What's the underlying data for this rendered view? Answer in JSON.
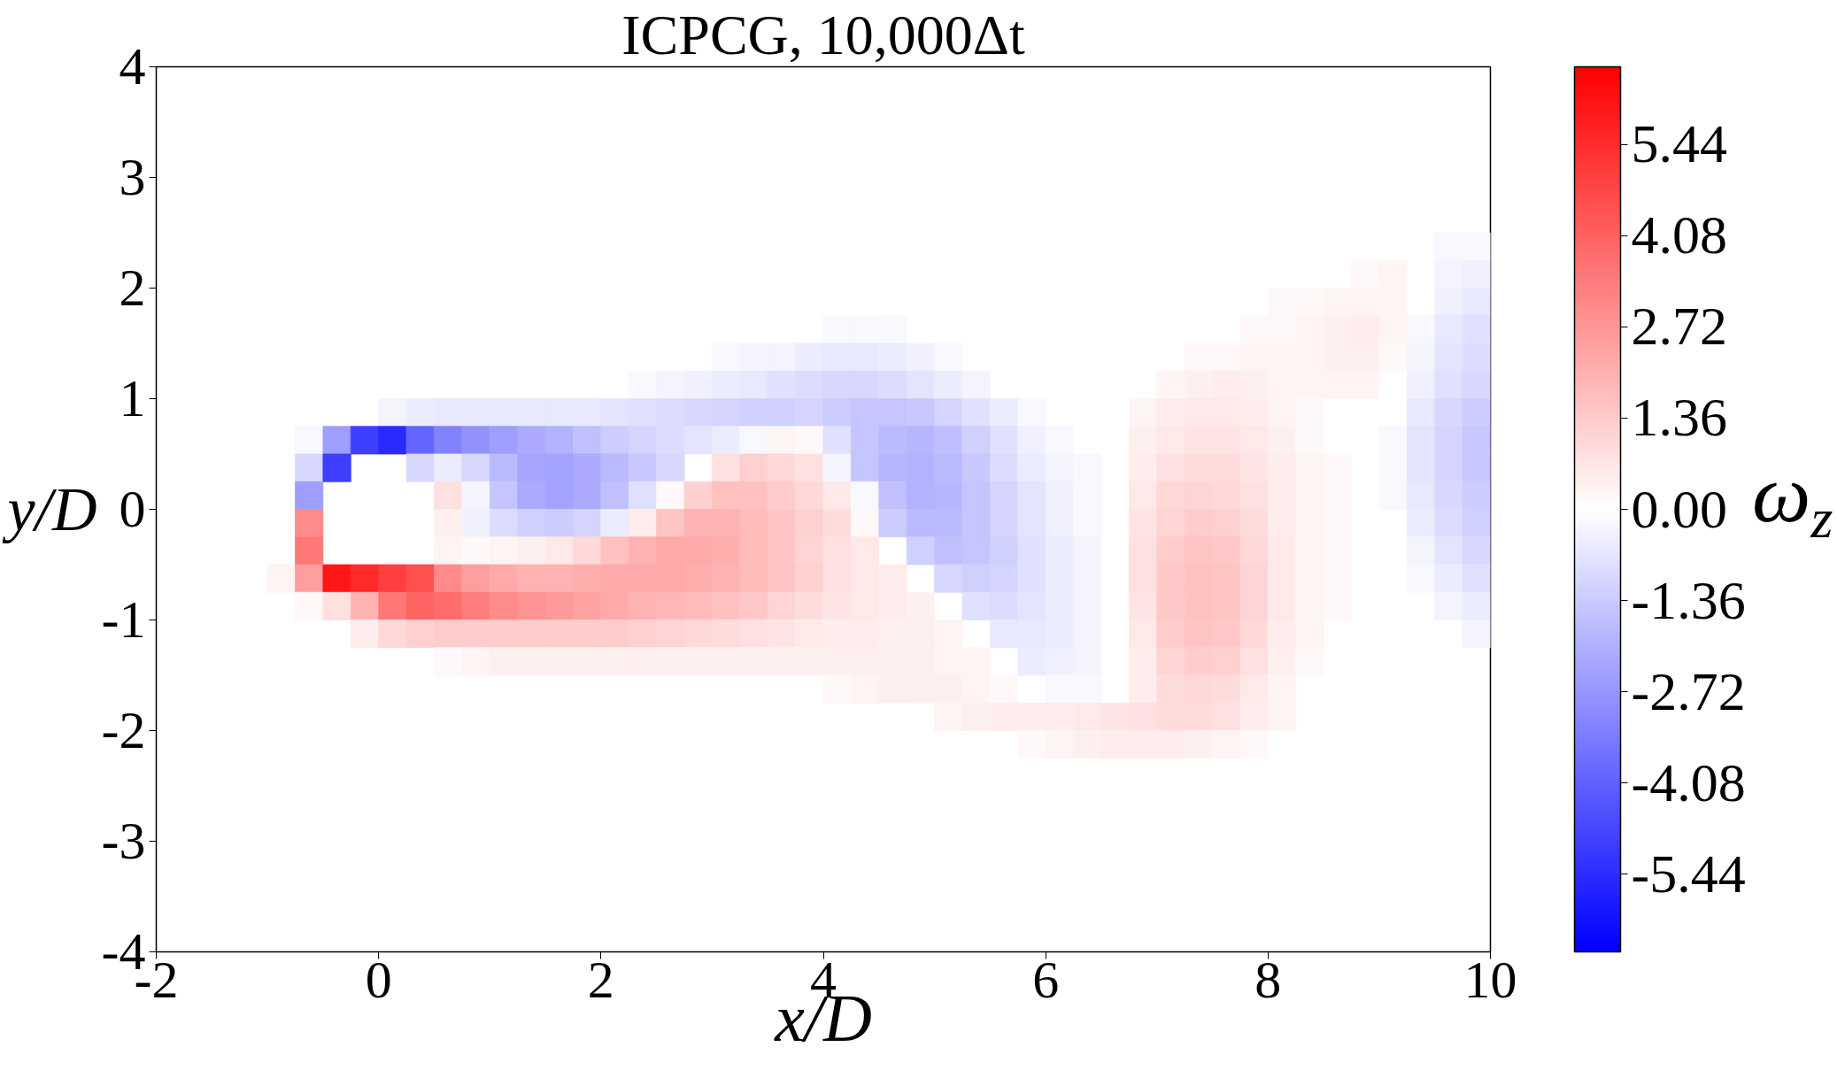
{
  "chart_data": {
    "type": "scatter",
    "marker": "square",
    "title": "ICPCG, 10,000Δt",
    "xlabel": "x/D",
    "ylabel": "y/D",
    "clabel": "ω$_{z}$",
    "xlim": [
      -2,
      10
    ],
    "ylim": [
      -4,
      4
    ],
    "xticks": [
      -2,
      0,
      2,
      4,
      6,
      8,
      10
    ],
    "yticks": [
      -4,
      -3,
      -2,
      -1,
      0,
      1,
      2,
      3,
      4
    ],
    "clim": [
      -6.6,
      6.6
    ],
    "cticks": [
      -5.44,
      -4.08,
      -2.72,
      -1.36,
      {
        "value": 0,
        "label": "0.00"
      },
      1.36,
      2.72,
      4.08,
      5.44
    ],
    "x": [
      9.625,
      9.875,
      8.875,
      9.125,
      9.625,
      9.875,
      8.125,
      8.375,
      8.625,
      8.875,
      9.125,
      9.625,
      9.875,
      4.125,
      4.375,
      4.625,
      7.875,
      8.125,
      8.375,
      8.625,
      8.875,
      9.125,
      9.375,
      9.625,
      9.875,
      3.125,
      3.375,
      3.625,
      3.875,
      4.125,
      4.375,
      4.625,
      4.875,
      5.125,
      7.375,
      7.625,
      7.875,
      8.125,
      8.375,
      8.625,
      8.875,
      9.125,
      9.375,
      9.625,
      9.875,
      2.375,
      2.625,
      2.875,
      3.125,
      3.375,
      3.625,
      3.875,
      4.125,
      4.375,
      4.625,
      4.875,
      5.125,
      5.375,
      7.125,
      7.375,
      7.625,
      7.875,
      8.125,
      8.375,
      8.625,
      8.875,
      9.375,
      9.625,
      9.875,
      0.125,
      0.375,
      0.625,
      0.875,
      1.125,
      1.375,
      1.625,
      1.875,
      2.125,
      2.375,
      2.625,
      2.875,
      3.125,
      3.375,
      3.625,
      3.875,
      4.125,
      4.375,
      4.625,
      4.875,
      5.125,
      5.375,
      5.625,
      5.875,
      6.875,
      7.125,
      7.375,
      7.625,
      7.875,
      8.125,
      8.375,
      9.375,
      9.625,
      9.875,
      -0.625,
      -0.375,
      -0.125,
      0.125,
      0.375,
      0.625,
      0.875,
      1.125,
      1.375,
      1.625,
      1.875,
      2.125,
      2.375,
      2.625,
      2.875,
      3.125,
      3.375,
      3.625,
      3.875,
      4.125,
      4.375,
      4.625,
      4.875,
      5.125,
      5.375,
      5.625,
      5.875,
      6.125,
      6.875,
      7.125,
      7.375,
      7.625,
      7.875,
      8.125,
      8.375,
      9.125,
      9.375,
      9.625,
      9.875,
      -0.625,
      -0.375,
      0.375,
      0.625,
      0.875,
      1.125,
      1.375,
      1.625,
      1.875,
      2.125,
      2.375,
      2.625,
      3.125,
      3.375,
      3.625,
      3.875,
      4.125,
      4.375,
      4.625,
      4.875,
      5.125,
      5.375,
      5.625,
      5.875,
      6.125,
      6.375,
      6.875,
      7.125,
      7.375,
      7.625,
      7.875,
      8.125,
      8.375,
      8.625,
      9.125,
      9.375,
      9.625,
      9.875,
      -0.625,
      0.625,
      0.875,
      1.125,
      1.375,
      1.625,
      1.875,
      2.125,
      2.375,
      2.625,
      2.875,
      3.125,
      3.375,
      3.625,
      3.875,
      4.125,
      4.375,
      4.625,
      4.875,
      5.125,
      5.375,
      5.625,
      5.875,
      6.125,
      6.375,
      6.875,
      7.125,
      7.375,
      7.625,
      7.875,
      8.125,
      8.375,
      8.625,
      9.125,
      9.375,
      9.625,
      9.875,
      -0.625,
      0.625,
      0.875,
      1.125,
      1.375,
      1.625,
      1.875,
      2.125,
      2.375,
      2.625,
      2.875,
      3.125,
      3.375,
      3.625,
      3.875,
      4.125,
      4.375,
      4.625,
      4.875,
      5.125,
      5.375,
      5.625,
      5.875,
      6.125,
      6.375,
      6.875,
      7.125,
      7.375,
      7.625,
      7.875,
      8.125,
      8.375,
      8.625,
      9.375,
      9.625,
      9.875,
      -0.625,
      0.625,
      0.875,
      1.125,
      1.375,
      1.625,
      1.875,
      2.125,
      2.375,
      2.625,
      2.875,
      3.125,
      3.375,
      3.625,
      3.875,
      4.125,
      4.375,
      4.875,
      5.125,
      5.375,
      5.625,
      5.875,
      6.125,
      6.375,
      6.875,
      7.125,
      7.375,
      7.625,
      7.875,
      8.125,
      8.375,
      8.625,
      9.375,
      9.625,
      9.875,
      -0.875,
      -0.625,
      -0.375,
      -0.125,
      0.125,
      0.375,
      0.625,
      0.875,
      1.125,
      1.375,
      1.625,
      1.875,
      2.125,
      2.375,
      2.625,
      2.875,
      3.125,
      3.375,
      3.625,
      3.875,
      4.125,
      4.375,
      4.625,
      5.125,
      5.375,
      5.625,
      5.875,
      6.125,
      6.375,
      6.875,
      7.125,
      7.375,
      7.625,
      7.875,
      8.125,
      8.375,
      8.625,
      9.375,
      9.625,
      9.875,
      -0.625,
      -0.375,
      -0.125,
      0.125,
      0.375,
      0.625,
      0.875,
      1.125,
      1.375,
      1.625,
      1.875,
      2.125,
      2.375,
      2.625,
      2.875,
      3.125,
      3.375,
      3.625,
      3.875,
      4.125,
      4.375,
      4.625,
      4.875,
      5.375,
      5.625,
      5.875,
      6.125,
      6.375,
      6.875,
      7.125,
      7.375,
      7.625,
      7.875,
      8.125,
      8.375,
      8.625,
      9.625,
      9.875,
      -0.125,
      0.125,
      0.375,
      0.625,
      0.875,
      1.125,
      1.375,
      1.625,
      1.875,
      2.125,
      2.375,
      2.625,
      2.875,
      3.125,
      3.375,
      3.625,
      3.875,
      4.125,
      4.375,
      4.625,
      4.875,
      5.125,
      5.625,
      5.875,
      6.125,
      6.375,
      6.875,
      7.125,
      7.375,
      7.625,
      7.875,
      8.125,
      8.375,
      9.875,
      0.625,
      0.875,
      1.125,
      1.375,
      1.625,
      1.875,
      2.125,
      2.375,
      2.625,
      2.875,
      3.125,
      3.375,
      3.625,
      3.875,
      4.125,
      4.375,
      4.625,
      4.875,
      5.125,
      5.375,
      5.875,
      6.125,
      6.375,
      6.875,
      7.125,
      7.375,
      7.625,
      7.875,
      8.125,
      8.375,
      4.125,
      4.375,
      4.625,
      4.875,
      5.125,
      5.375,
      5.625,
      6.125,
      6.375,
      6.875,
      7.125,
      7.375,
      7.625,
      7.875,
      8.125,
      5.125,
      5.375,
      5.625,
      5.875,
      6.125,
      6.375,
      6.625,
      6.875,
      7.125,
      7.375,
      7.625,
      7.875,
      8.125,
      5.875,
      6.125,
      6.375,
      6.625,
      6.875,
      7.125,
      7.375,
      7.625,
      7.875
    ],
    "values": [
      2.375,
      2.375,
      2.125,
      2.125,
      2.125,
      2.125,
      1.875,
      1.875,
      1.875,
      1.875,
      1.875,
      1.875,
      1.875,
      1.625,
      1.625,
      1.625,
      1.625,
      1.625,
      1.625,
      1.625,
      1.625,
      1.625,
      1.625,
      1.625,
      1.625,
      1.375,
      1.375,
      1.375,
      1.375,
      1.375,
      1.375,
      1.375,
      1.375,
      1.375,
      1.375,
      1.375,
      1.375,
      1.375,
      1.375,
      1.375,
      1.375,
      1.375,
      1.375,
      1.375,
      1.375,
      1.125,
      1.125,
      1.125,
      1.125,
      1.125,
      1.125,
      1.125,
      1.125,
      1.125,
      1.125,
      1.125,
      1.125,
      1.125,
      1.125,
      1.125,
      1.125,
      1.125,
      1.125,
      1.125,
      1.125,
      1.125,
      1.125,
      1.125,
      1.125,
      0.875,
      0.875,
      0.875,
      0.875,
      0.875,
      0.875,
      0.875,
      0.875,
      0.875,
      0.875,
      0.875,
      0.875,
      0.875,
      0.875,
      0.875,
      0.875,
      0.875,
      0.875,
      0.875,
      0.875,
      0.875,
      0.875,
      0.875,
      0.875,
      0.875,
      0.875,
      0.875,
      0.875,
      0.875,
      0.875,
      0.875,
      0.875,
      0.875,
      0.875,
      0.625,
      0.625,
      0.625,
      0.625,
      0.625,
      0.625,
      0.625,
      0.625,
      0.625,
      0.625,
      0.625,
      0.625,
      0.625,
      0.625,
      0.625,
      0.625,
      0.625,
      0.625,
      0.625,
      0.625,
      0.625,
      0.625,
      0.625,
      0.625,
      0.625,
      0.625,
      0.625,
      0.625,
      0.625,
      0.625,
      0.625,
      0.625,
      0.625,
      0.625,
      0.625,
      0.625,
      0.625,
      0.625,
      0.625,
      0.375,
      0.375,
      0.375,
      0.375,
      0.375,
      0.375,
      0.375,
      0.375,
      0.375,
      0.375,
      0.375,
      0.375,
      0.375,
      0.375,
      0.375,
      0.375,
      0.375,
      0.375,
      0.375,
      0.375,
      0.375,
      0.375,
      0.375,
      0.375,
      0.375,
      0.375,
      0.375,
      0.375,
      0.375,
      0.375,
      0.375,
      0.375,
      0.375,
      0.375,
      0.375,
      0.375,
      0.375,
      0.375,
      0.125,
      0.125,
      0.125,
      0.125,
      0.125,
      0.125,
      0.125,
      0.125,
      0.125,
      0.125,
      0.125,
      0.125,
      0.125,
      0.125,
      0.125,
      0.125,
      0.125,
      0.125,
      0.125,
      0.125,
      0.125,
      0.125,
      0.125,
      0.125,
      0.125,
      0.125,
      0.125,
      0.125,
      0.125,
      0.125,
      0.125,
      0.125,
      0.125,
      0.125,
      0.125,
      0.125,
      0.125,
      -0.125,
      -0.125,
      -0.125,
      -0.125,
      -0.125,
      -0.125,
      -0.125,
      -0.125,
      -0.125,
      -0.125,
      -0.125,
      -0.125,
      -0.125,
      -0.125,
      -0.125,
      -0.125,
      -0.125,
      -0.125,
      -0.125,
      -0.125,
      -0.125,
      -0.125,
      -0.125,
      -0.125,
      -0.125,
      -0.125,
      -0.125,
      -0.125,
      -0.125,
      -0.125,
      -0.125,
      -0.125,
      -0.125,
      -0.125,
      -0.125,
      -0.125,
      -0.375,
      -0.375,
      -0.375,
      -0.375,
      -0.375,
      -0.375,
      -0.375,
      -0.375,
      -0.375,
      -0.375,
      -0.375,
      -0.375,
      -0.375,
      -0.375,
      -0.375,
      -0.375,
      -0.375,
      -0.375,
      -0.375,
      -0.375,
      -0.375,
      -0.375,
      -0.375,
      -0.375,
      -0.375,
      -0.375,
      -0.375,
      -0.375,
      -0.375,
      -0.375,
      -0.375,
      -0.375,
      -0.375,
      -0.375,
      -0.375,
      -0.625,
      -0.625,
      -0.625,
      -0.625,
      -0.625,
      -0.625,
      -0.625,
      -0.625,
      -0.625,
      -0.625,
      -0.625,
      -0.625,
      -0.625,
      -0.625,
      -0.625,
      -0.625,
      -0.625,
      -0.625,
      -0.625,
      -0.625,
      -0.625,
      -0.625,
      -0.625,
      -0.625,
      -0.625,
      -0.625,
      -0.625,
      -0.625,
      -0.625,
      -0.625,
      -0.625,
      -0.625,
      -0.625,
      -0.625,
      -0.625,
      -0.625,
      -0.625,
      -0.625,
      -0.625,
      -0.625,
      -0.875,
      -0.875,
      -0.875,
      -0.875,
      -0.875,
      -0.875,
      -0.875,
      -0.875,
      -0.875,
      -0.875,
      -0.875,
      -0.875,
      -0.875,
      -0.875,
      -0.875,
      -0.875,
      -0.875,
      -0.875,
      -0.875,
      -0.875,
      -0.875,
      -0.875,
      -0.875,
      -0.875,
      -0.875,
      -0.875,
      -0.875,
      -0.875,
      -0.875,
      -0.875,
      -0.875,
      -0.875,
      -0.875,
      -0.875,
      -0.875,
      -0.875,
      -0.875,
      -0.875,
      -1.125,
      -1.125,
      -1.125,
      -1.125,
      -1.125,
      -1.125,
      -1.125,
      -1.125,
      -1.125,
      -1.125,
      -1.125,
      -1.125,
      -1.125,
      -1.125,
      -1.125,
      -1.125,
      -1.125,
      -1.125,
      -1.125,
      -1.125,
      -1.125,
      -1.125,
      -1.125,
      -1.125,
      -1.125,
      -1.125,
      -1.125,
      -1.125,
      -1.125,
      -1.125,
      -1.125,
      -1.125,
      -1.125,
      -1.125,
      -1.375,
      -1.375,
      -1.375,
      -1.375,
      -1.375,
      -1.375,
      -1.375,
      -1.375,
      -1.375,
      -1.375,
      -1.375,
      -1.375,
      -1.375,
      -1.375,
      -1.375,
      -1.375,
      -1.375,
      -1.375,
      -1.375,
      -1.375,
      -1.375,
      -1.375,
      -1.375,
      -1.375,
      -1.375,
      -1.375,
      -1.375,
      -1.375,
      -1.375,
      -1.375,
      -1.625,
      -1.625,
      -1.625,
      -1.625,
      -1.625,
      -1.625,
      -1.625,
      -1.625,
      -1.625,
      -1.625,
      -1.625,
      -1.625,
      -1.625,
      -1.625,
      -1.625,
      -1.875,
      -1.875,
      -1.875,
      -1.875,
      -1.875,
      -1.875,
      -1.875,
      -1.875,
      -1.875,
      -1.875,
      -1.875,
      -1.875,
      -1.875,
      -2.125,
      -2.125,
      -2.125,
      -2.125,
      -2.125,
      -2.125,
      -2.125,
      -2.125,
      -2.125
    ],
    "cvalues": [
      -0.2,
      -0.2,
      0.2,
      0.3,
      -0.3,
      -0.4,
      0.2,
      0.2,
      0.3,
      0.3,
      0.3,
      -0.4,
      -0.6,
      -0.2,
      -0.2,
      -0.2,
      0.2,
      0.2,
      0.3,
      0.4,
      0.5,
      0.3,
      -0.2,
      -0.6,
      -0.8,
      -0.2,
      -0.3,
      -0.3,
      -0.5,
      -0.6,
      -0.6,
      -0.5,
      -0.4,
      -0.2,
      0.2,
      0.2,
      0.3,
      0.3,
      0.3,
      0.4,
      0.4,
      0.2,
      -0.3,
      -0.7,
      -0.9,
      -0.2,
      -0.3,
      -0.4,
      -0.5,
      -0.6,
      -0.8,
      -0.9,
      -1.0,
      -1.0,
      -0.9,
      -0.7,
      -0.5,
      -0.3,
      0.3,
      0.4,
      0.5,
      0.4,
      0.3,
      0.3,
      0.3,
      0.3,
      -0.4,
      -0.8,
      -1.0,
      -0.3,
      -0.5,
      -0.6,
      -0.6,
      -0.6,
      -0.6,
      -0.6,
      -0.6,
      -0.7,
      -0.8,
      -0.9,
      -1.0,
      -1.1,
      -1.2,
      -1.2,
      -1.1,
      -1.3,
      -1.5,
      -1.5,
      -1.4,
      -1.1,
      -0.8,
      -0.5,
      -0.2,
      0.3,
      0.5,
      0.6,
      0.6,
      0.5,
      0.3,
      0.2,
      -0.6,
      -1.0,
      -1.3,
      -0.2,
      -2.5,
      -5.0,
      -5.5,
      -4.0,
      -3.2,
      -2.8,
      -2.5,
      -2.2,
      -2.0,
      -1.6,
      -1.3,
      -1.1,
      -0.9,
      -0.7,
      -0.5,
      -0.2,
      0.3,
      0.2,
      -0.8,
      -1.5,
      -1.8,
      -1.9,
      -1.7,
      -1.2,
      -0.8,
      -0.4,
      -0.2,
      0.4,
      0.6,
      0.7,
      0.7,
      0.6,
      0.4,
      0.2,
      -0.2,
      -0.7,
      -1.1,
      -1.4,
      -1.0,
      -5.0,
      -1.0,
      -0.5,
      -1.0,
      -1.8,
      -2.3,
      -2.4,
      -2.2,
      -1.8,
      -1.4,
      -1.0,
      0.8,
      1.2,
      1.0,
      0.8,
      -0.3,
      -1.5,
      -1.9,
      -2.0,
      -1.8,
      -1.4,
      -0.9,
      -0.5,
      -0.3,
      -0.2,
      0.5,
      0.8,
      0.9,
      0.9,
      0.7,
      0.5,
      0.3,
      0.2,
      -0.2,
      -0.7,
      -1.1,
      -1.4,
      -2.5,
      0.8,
      -0.3,
      -1.5,
      -2.2,
      -2.4,
      -2.2,
      -1.6,
      -0.8,
      0.2,
      1.2,
      1.6,
      1.6,
      1.3,
      1.0,
      0.6,
      -0.2,
      -1.6,
      -2.0,
      -1.9,
      -1.5,
      -1.1,
      -0.7,
      -0.4,
      -0.2,
      0.6,
      1.0,
      1.1,
      1.0,
      0.8,
      0.5,
      0.3,
      0.2,
      -0.2,
      -0.6,
      -1.0,
      -1.3,
      3.0,
      0.4,
      -0.4,
      -0.9,
      -1.2,
      -1.3,
      -1.1,
      -0.5,
      0.5,
      1.5,
      2.0,
      2.0,
      1.8,
      1.5,
      1.2,
      0.9,
      0.2,
      -1.3,
      -1.8,
      -1.8,
      -1.5,
      -1.1,
      -0.7,
      -0.4,
      -0.2,
      0.7,
      1.1,
      1.3,
      1.2,
      0.9,
      0.5,
      0.3,
      0.2,
      -0.5,
      -0.9,
      -1.2,
      3.5,
      0.3,
      0.2,
      0.3,
      0.4,
      0.6,
      1.0,
      1.6,
      2.0,
      2.2,
      2.2,
      2.1,
      1.8,
      1.5,
      1.1,
      0.8,
      0.6,
      -1.2,
      -1.6,
      -1.5,
      -1.2,
      -0.8,
      -0.5,
      -0.3,
      0.8,
      1.3,
      1.5,
      1.4,
      1.0,
      0.6,
      0.3,
      0.2,
      -0.3,
      -0.7,
      -1.0,
      0.3,
      2.5,
      6.0,
      5.5,
      5.0,
      4.5,
      3.0,
      2.5,
      2.2,
      2.0,
      2.0,
      2.1,
      2.2,
      2.2,
      2.2,
      2.1,
      2.0,
      1.8,
      1.5,
      1.2,
      0.8,
      0.6,
      0.5,
      -1.0,
      -1.2,
      -1.1,
      -0.8,
      -0.5,
      -0.3,
      0.8,
      1.4,
      1.6,
      1.5,
      1.1,
      0.6,
      0.3,
      0.2,
      -0.2,
      -0.5,
      -0.8,
      0.2,
      0.8,
      2.0,
      3.5,
      4.0,
      3.8,
      3.4,
      3.0,
      2.8,
      2.6,
      2.4,
      2.2,
      2.0,
      1.9,
      1.8,
      1.6,
      1.4,
      1.1,
      0.9,
      0.7,
      0.6,
      0.5,
      0.4,
      -0.8,
      -0.9,
      -0.7,
      -0.5,
      -0.3,
      0.7,
      1.4,
      1.6,
      1.5,
      1.1,
      0.6,
      0.3,
      0.2,
      -0.3,
      -0.5,
      0.5,
      1.0,
      1.2,
      1.3,
      1.3,
      1.3,
      1.3,
      1.3,
      1.3,
      1.3,
      1.2,
      1.1,
      1.0,
      0.9,
      0.8,
      0.7,
      0.6,
      0.5,
      0.5,
      0.4,
      0.4,
      0.3,
      -0.6,
      -0.6,
      -0.5,
      -0.3,
      0.6,
      1.3,
      1.5,
      1.4,
      1.0,
      0.5,
      0.3,
      -0.3,
      0.2,
      0.3,
      0.4,
      0.4,
      0.4,
      0.4,
      0.4,
      0.4,
      0.4,
      0.4,
      0.4,
      0.4,
      0.4,
      0.4,
      0.4,
      0.4,
      0.4,
      0.4,
      0.3,
      0.3,
      -0.5,
      -0.4,
      -0.3,
      0.5,
      1.1,
      1.3,
      1.2,
      0.8,
      0.4,
      0.2,
      0.2,
      0.3,
      0.4,
      0.4,
      0.4,
      0.3,
      0.2,
      -0.2,
      -0.2,
      0.5,
      0.9,
      1.0,
      0.9,
      0.6,
      0.3,
      0.3,
      0.4,
      0.5,
      0.5,
      0.5,
      0.6,
      0.7,
      0.8,
      0.9,
      0.9,
      0.8,
      0.5,
      0.3,
      0.2,
      0.3,
      0.4,
      0.5,
      0.5,
      0.5,
      0.4,
      0.3,
      0.2
    ]
  }
}
